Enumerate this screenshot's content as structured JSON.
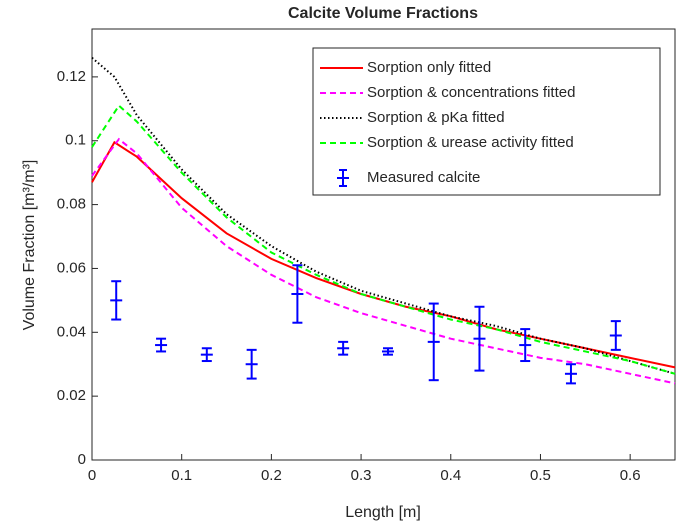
{
  "chart_data": {
    "type": "line",
    "title": "Calcite Volume Fractions",
    "xlabel": "Length [m]",
    "ylabel": "Volume Fraction [m³/m³]",
    "xlim": [
      0,
      0.65
    ],
    "ylim": [
      0,
      0.135
    ],
    "xticks": [
      0,
      0.1,
      0.2,
      0.3,
      0.4,
      0.5,
      0.6
    ],
    "yticks": [
      0,
      0.02,
      0.04,
      0.06,
      0.08,
      0.1,
      0.12
    ],
    "legend": "upper right",
    "series": [
      {
        "name": "Sorption only fitted",
        "color": "#ff0000",
        "linestyle": "solid",
        "x": [
          0,
          0.025,
          0.05,
          0.1,
          0.15,
          0.2,
          0.25,
          0.3,
          0.35,
          0.4,
          0.45,
          0.5,
          0.55,
          0.6,
          0.65
        ],
        "values": [
          0.087,
          0.0995,
          0.095,
          0.082,
          0.071,
          0.063,
          0.057,
          0.052,
          0.048,
          0.045,
          0.041,
          0.038,
          0.035,
          0.032,
          0.029
        ]
      },
      {
        "name": "Sorption & concentrations fitted",
        "color": "#ff00ff",
        "linestyle": "dashed",
        "x": [
          0,
          0.03,
          0.05,
          0.1,
          0.15,
          0.2,
          0.25,
          0.3,
          0.35,
          0.4,
          0.45,
          0.5,
          0.55,
          0.6,
          0.65
        ],
        "values": [
          0.089,
          0.1005,
          0.096,
          0.079,
          0.067,
          0.058,
          0.051,
          0.046,
          0.042,
          0.038,
          0.035,
          0.032,
          0.03,
          0.027,
          0.024
        ]
      },
      {
        "name": "Sorption & pKa fitted",
        "color": "#000000",
        "linestyle": "dotted",
        "x": [
          0,
          0.025,
          0.05,
          0.1,
          0.15,
          0.2,
          0.25,
          0.3,
          0.35,
          0.4,
          0.45,
          0.5,
          0.55,
          0.6,
          0.65
        ],
        "values": [
          0.126,
          0.12,
          0.108,
          0.091,
          0.077,
          0.067,
          0.059,
          0.053,
          0.049,
          0.045,
          0.042,
          0.038,
          0.035,
          0.031,
          0.027
        ]
      },
      {
        "name": "Sorption & urease activity fitted",
        "color": "#00ff00",
        "linestyle": "dashed",
        "x": [
          0,
          0.03,
          0.05,
          0.1,
          0.15,
          0.2,
          0.25,
          0.3,
          0.35,
          0.4,
          0.45,
          0.5,
          0.55,
          0.6,
          0.65
        ],
        "values": [
          0.098,
          0.111,
          0.106,
          0.09,
          0.076,
          0.065,
          0.058,
          0.052,
          0.048,
          0.044,
          0.041,
          0.037,
          0.034,
          0.031,
          0.027
        ]
      },
      {
        "name": "Measured calcite",
        "color": "#0000ff",
        "type": "errorbar",
        "x": [
          0.027,
          0.077,
          0.128,
          0.178,
          0.229,
          0.28,
          0.33,
          0.381,
          0.432,
          0.483,
          0.534,
          0.584
        ],
        "values": [
          0.05,
          0.036,
          0.033,
          0.03,
          0.052,
          0.035,
          0.034,
          0.037,
          0.038,
          0.036,
          0.027,
          0.039
        ],
        "errors": [
          0.006,
          0.002,
          0.002,
          0.0045,
          0.009,
          0.002,
          0.001,
          0.012,
          0.01,
          0.005,
          0.003,
          0.0045
        ]
      }
    ]
  }
}
